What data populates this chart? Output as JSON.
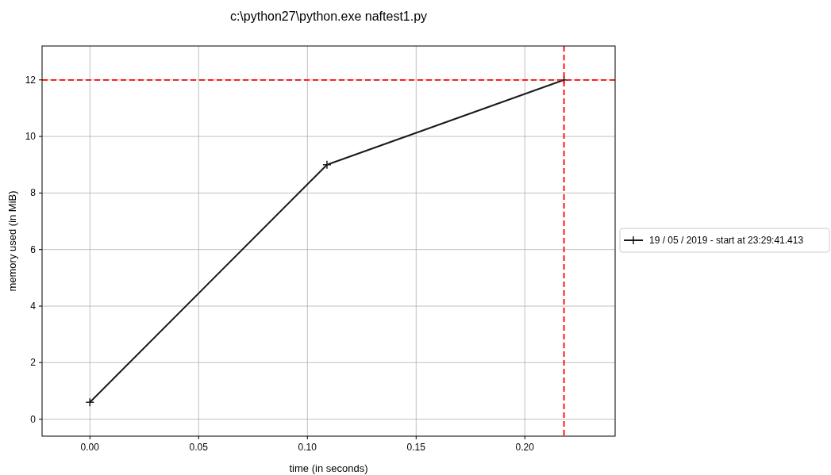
{
  "chart_data": {
    "type": "line",
    "title": "c:\\python27\\python.exe naftest1.py",
    "xlabel": "time (in seconds)",
    "ylabel": "memory used (in MiB)",
    "x": [
      0,
      0.109,
      0.218
    ],
    "series": [
      {
        "name": "19 / 05 / 2019 - start at 23:29:41.413",
        "color": "#1a1a1a",
        "values": [
          0.6,
          9.0,
          12.0
        ]
      }
    ],
    "xlim": [
      -0.022,
      0.2415
    ],
    "xticks": [
      {
        "value": 0,
        "label": "0.00"
      },
      {
        "value": 0.05,
        "label": "0.05"
      },
      {
        "value": 0.1,
        "label": "0.10"
      },
      {
        "value": 0.15,
        "label": "0.15"
      },
      {
        "value": 0.2,
        "label": "0.20"
      }
    ],
    "ylim": [
      -0.6,
      13.2
    ],
    "yticks": [
      0,
      2,
      4,
      6,
      8,
      10,
      12
    ],
    "ref_lines": [
      {
        "axis": "y",
        "value": 12,
        "color": "#ff0000",
        "line_style": "dashed"
      },
      {
        "axis": "x",
        "value": 0.218,
        "color": "#ff0000",
        "line_style": "dashed"
      }
    ],
    "grid": true,
    "legend": "right",
    "marker": "cross",
    "line_style": "solid"
  }
}
